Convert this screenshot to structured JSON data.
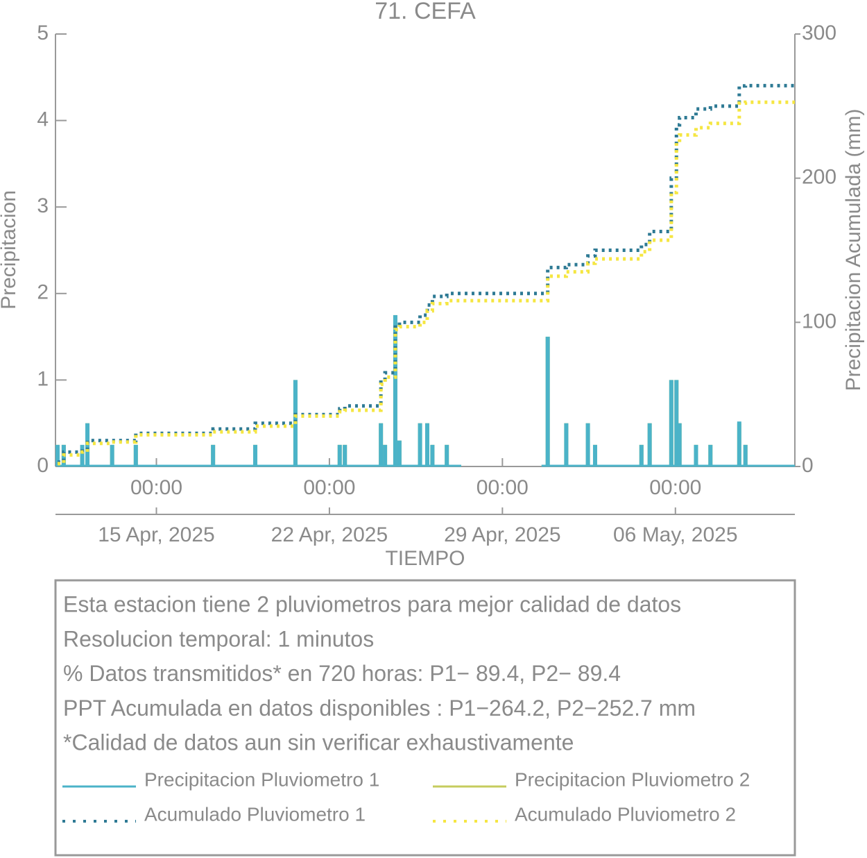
{
  "chart_data": {
    "type": "bar",
    "title": "71. CEFA",
    "xlabel": "TIEMPO",
    "ylabel": "Precipitacion",
    "y2label": "Precipitacion Acumulada (mm)",
    "x": [
      "2025-04-11 00:00",
      "2025-04-11 06:00",
      "2025-04-12 00:00",
      "2025-04-12 05:00",
      "2025-04-13 05:00",
      "2025-04-14 04:00",
      "2025-04-17 07:00",
      "2025-04-19 00:00",
      "2025-04-20 15:00",
      "2025-04-22 10:00",
      "2025-04-22 15:00",
      "2025-04-24 02:00",
      "2025-04-24 06:00",
      "2025-04-24 16:00",
      "2025-04-24 20:00",
      "2025-04-25 16:00",
      "2025-04-25 23:00",
      "2025-04-26 04:00",
      "2025-04-26 18:00",
      "2025-04-27 08:00",
      "2025-04-29 00:00",
      "2025-04-30 14:00",
      "2025-04-30 20:00",
      "2025-05-01 14:00",
      "2025-05-02 11:00",
      "2025-05-02 18:00",
      "2025-05-04 15:00",
      "2025-05-04 23:00",
      "2025-05-05 20:00",
      "2025-05-06 01:00",
      "2025-05-06 04:00",
      "2025-05-06 20:00",
      "2025-05-07 10:00",
      "2025-05-08 14:00",
      "2025-05-08 20:00",
      "2025-05-10 20:00"
    ],
    "series": [
      {
        "name": "Precipitacion Pluviometro 1",
        "color": "#4bb3c8",
        "style": "bar",
        "axis": "y",
        "values": [
          0.25,
          0.25,
          0.25,
          0.5,
          0.25,
          0.25,
          0.25,
          0.25,
          1,
          0.25,
          0.25,
          0.5,
          0.25,
          1.75,
          0.3,
          0.5,
          0.5,
          0.25,
          0.25,
          0,
          null,
          0,
          1.5,
          0.5,
          0.5,
          0.25,
          0.25,
          0.5,
          1,
          1,
          0.5,
          0.25,
          0.25,
          0.52,
          0.25,
          0
        ]
      },
      {
        "name": "Precipitacion Pluviometro 2",
        "color": "#c6cc5e",
        "style": "bar",
        "axis": "y",
        "values": [
          0.25,
          0.25,
          0.2,
          0.5,
          0.25,
          0.25,
          0.25,
          0.25,
          1,
          0.25,
          0.25,
          0.5,
          0.25,
          1.75,
          0.3,
          0.5,
          0.5,
          0.25,
          0.25,
          0,
          null,
          0,
          1.5,
          0.5,
          0.5,
          0.25,
          0.25,
          0.5,
          1,
          1,
          0.5,
          0.25,
          0.25,
          0.5,
          0.25,
          0
        ]
      },
      {
        "name": "Acumulado Pluviometro 1",
        "color": "#2e7a94",
        "style": "dotted-step",
        "axis": "y2",
        "values": [
          3,
          10,
          12,
          18,
          18,
          23,
          26,
          30,
          36,
          40,
          42,
          60,
          65,
          98,
          100,
          105,
          112,
          118,
          120,
          120,
          120,
          120,
          138,
          140,
          146,
          150,
          154,
          163,
          200,
          237,
          242,
          248,
          250,
          264,
          264.2,
          264.2
        ]
      },
      {
        "name": "Acumulado Pluviometro 2",
        "color": "#f5e642",
        "style": "dotted-step",
        "axis": "y2",
        "values": [
          2,
          8,
          10,
          16,
          17,
          22,
          24,
          28,
          35,
          38,
          39,
          57,
          62,
          95,
          97,
          100,
          108,
          113,
          115,
          115,
          115,
          115,
          132,
          135,
          141,
          144,
          149,
          157,
          190,
          225,
          230,
          235,
          238,
          252,
          252.7,
          252.7
        ]
      }
    ],
    "xlim": [
      "2025-04-10 22:00",
      "2025-05-10 20:00"
    ],
    "xticks": [
      {
        "value": "2025-04-15 00:00",
        "label": "00:00"
      },
      {
        "value": "2025-04-22 00:00",
        "label": "00:00"
      },
      {
        "value": "2025-04-29 00:00",
        "label": "00:00"
      },
      {
        "value": "2025-05-06 00:00",
        "label": "00:00"
      }
    ],
    "xdateticks": [
      {
        "value": "2025-04-15 00:00",
        "label": "15 Apr, 2025"
      },
      {
        "value": "2025-04-22 00:00",
        "label": "22 Apr, 2025"
      },
      {
        "value": "2025-04-29 00:00",
        "label": "29 Apr, 2025"
      },
      {
        "value": "2025-05-06 00:00",
        "label": "06 May, 2025"
      }
    ],
    "ylim": [
      0,
      5
    ],
    "yticks": [
      0,
      1,
      2,
      3,
      4,
      5
    ],
    "y2lim": [
      0,
      300
    ],
    "y2ticks": [
      0,
      100,
      200,
      300
    ],
    "notes": [
      "Esta estacion tiene 2 pluviometros para mejor calidad de datos",
      "Resolucion temporal: 1 minutos",
      "% Datos transmitidos* en 720 horas: P1− 89.4, P2− 89.4",
      "PPT Acumulada en datos disponibles : P1−264.2, P2−252.7 mm",
      "*Calidad de datos aun sin verificar exhaustivamente"
    ]
  }
}
